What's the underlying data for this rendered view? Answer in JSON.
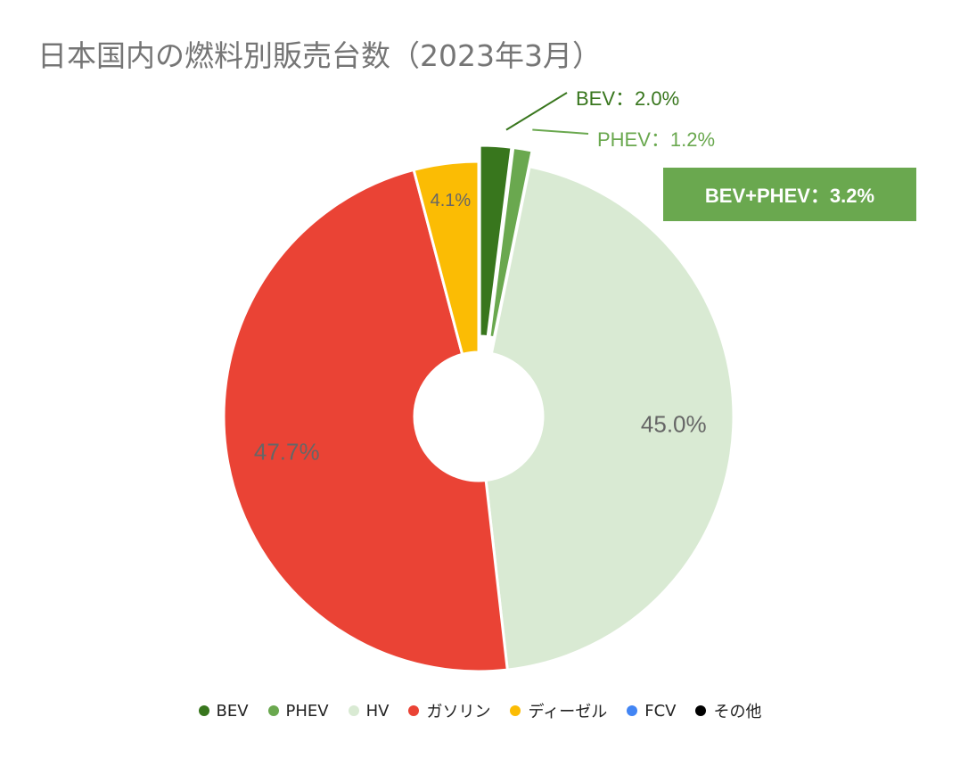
{
  "chart_data": {
    "type": "pie",
    "title": "日本国内の燃料別販売台数（2023年3月）",
    "donut": true,
    "legend_position": "bottom",
    "slices": [
      {
        "name": "BEV",
        "value": 2.0,
        "label": "BEV：2.0%",
        "color": "#38761d",
        "exploded": true
      },
      {
        "name": "PHEV",
        "value": 1.2,
        "label": "PHEV：1.2%",
        "color": "#6aa84f",
        "exploded": true
      },
      {
        "name": "HV",
        "value": 45.0,
        "label": "45.0%",
        "color": "#d9ead3",
        "exploded": false
      },
      {
        "name": "ガソリン",
        "value": 47.7,
        "label": "47.7%",
        "color": "#ea4335",
        "exploded": false
      },
      {
        "name": "ディーゼル",
        "value": 4.1,
        "label": "4.1%",
        "color": "#fbbc04",
        "exploded": false
      },
      {
        "name": "FCV",
        "value": 0.0,
        "label": "",
        "color": "#4285f4",
        "exploded": false
      },
      {
        "name": "その他",
        "value": 0.0,
        "label": "",
        "color": "#000000",
        "exploded": false
      }
    ],
    "annotation": "BEV+PHEV：3.2%"
  }
}
